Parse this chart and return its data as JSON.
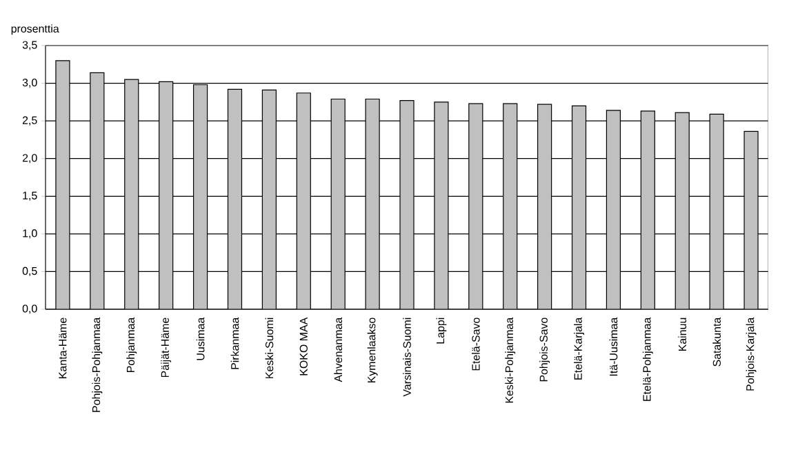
{
  "chart_data": {
    "type": "bar",
    "ylabel": "prosenttia",
    "categories": [
      "Kanta-Häme",
      "Pohjois-Pohjanmaa",
      "Pohjanmaa",
      "Päijät-Häme",
      "Uusimaa",
      "Pirkanmaa",
      "Keski-Suomi",
      "KOKO MAA",
      "Ahvenanmaa",
      "Kymenlaakso",
      "Varsinais-Suomi",
      "Lappi",
      "Etelä-Savo",
      "Keski-Pohjanmaa",
      "Pohjois-Savo",
      "Etelä-Karjala",
      "Itä-Uusimaa",
      "Etelä-Pohjanmaa",
      "Kainuu",
      "Satakunta",
      "Pohjois-Karjala"
    ],
    "values": [
      3.3,
      3.14,
      3.05,
      3.02,
      2.98,
      2.92,
      2.91,
      2.87,
      2.79,
      2.79,
      2.77,
      2.75,
      2.73,
      2.73,
      2.72,
      2.7,
      2.64,
      2.63,
      2.61,
      2.59,
      2.36
    ],
    "color": "#c0c0c0",
    "ylim": [
      0,
      3.5
    ],
    "yticks": [
      {
        "value": 0,
        "label": "0,0"
      },
      {
        "value": 0.5,
        "label": "0,5"
      },
      {
        "value": 1,
        "label": "1,0"
      },
      {
        "value": 1.5,
        "label": "1,5"
      },
      {
        "value": 2,
        "label": "2,0"
      },
      {
        "value": 2.5,
        "label": "2,5"
      },
      {
        "value": 3,
        "label": "3,0"
      },
      {
        "value": 3.5,
        "label": "3,5"
      }
    ],
    "grid": "y"
  }
}
